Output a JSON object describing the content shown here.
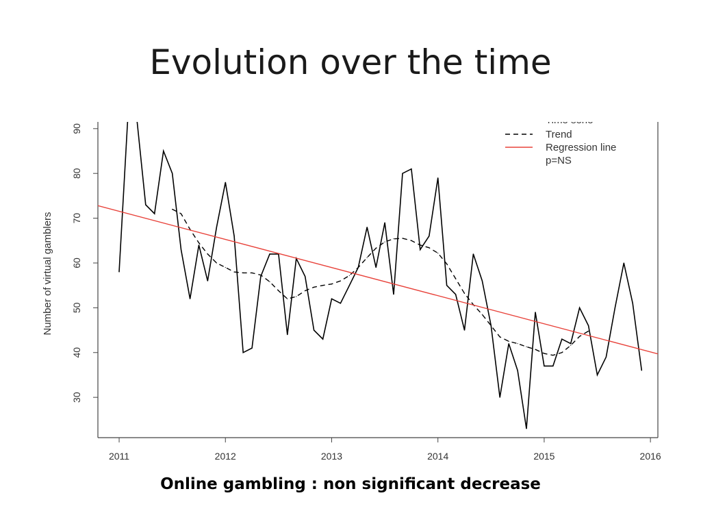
{
  "slide": {
    "title": "Evolution over the time",
    "caption": "Online gambling : non significant decrease"
  },
  "chart_data": {
    "type": "line",
    "ylabel": "Number of virtual gamblers",
    "xlabel": "",
    "xlim": [
      2010.8,
      2016.07
    ],
    "ylim": [
      21,
      91.5
    ],
    "x_ticks": [
      2011,
      2012,
      2013,
      2014,
      2015,
      2016
    ],
    "y_ticks": [
      30,
      40,
      50,
      60,
      70,
      80,
      90
    ],
    "grid": false,
    "legend_position": "top-right",
    "legend": [
      {
        "label": "Time serie",
        "style": "solid",
        "color": "#000000"
      },
      {
        "label": "Trend",
        "style": "dashed",
        "color": "#000000"
      },
      {
        "label": "Regression line",
        "style": "solid",
        "color": "#e8423a"
      },
      {
        "label": "p=NS",
        "style": "none",
        "color": "#000000"
      }
    ],
    "series": [
      {
        "name": "Time serie",
        "style": "solid",
        "color": "#000000",
        "x": [
          2011.0,
          2011.083,
          2011.167,
          2011.25,
          2011.333,
          2011.417,
          2011.5,
          2011.583,
          2011.667,
          2011.75,
          2011.833,
          2011.917,
          2012.0,
          2012.083,
          2012.167,
          2012.25,
          2012.333,
          2012.417,
          2012.5,
          2012.583,
          2012.667,
          2012.75,
          2012.833,
          2012.917,
          2013.0,
          2013.083,
          2013.167,
          2013.25,
          2013.333,
          2013.417,
          2013.5,
          2013.583,
          2013.667,
          2013.75,
          2013.833,
          2013.917,
          2014.0,
          2014.083,
          2014.167,
          2014.25,
          2014.333,
          2014.417,
          2014.5,
          2014.583,
          2014.667,
          2014.75,
          2014.833,
          2014.917,
          2015.0,
          2015.083,
          2015.167,
          2015.25,
          2015.333,
          2015.417,
          2015.5,
          2015.583,
          2015.667,
          2015.75,
          2015.833,
          2015.917
        ],
        "values": [
          58,
          93,
          92,
          73,
          71,
          85,
          80,
          63,
          52,
          64,
          56,
          68,
          78,
          66,
          40,
          41,
          57,
          62,
          62,
          44,
          61,
          57,
          45,
          43,
          52,
          51,
          55,
          59,
          68,
          59,
          69,
          53,
          80,
          81,
          63,
          66,
          79,
          55,
          53,
          45,
          62,
          56,
          46,
          30,
          42,
          36,
          23,
          49,
          37,
          37,
          43,
          42,
          50,
          46,
          35,
          39,
          50,
          60,
          51,
          36
        ]
      },
      {
        "name": "Trend",
        "style": "dashed",
        "color": "#000000",
        "x": [
          2011.5,
          2011.583,
          2011.667,
          2011.75,
          2011.833,
          2011.917,
          2012.0,
          2012.083,
          2012.167,
          2012.25,
          2012.333,
          2012.417,
          2012.5,
          2012.583,
          2012.667,
          2012.75,
          2012.833,
          2012.917,
          2013.0,
          2013.083,
          2013.167,
          2013.25,
          2013.333,
          2013.417,
          2013.5,
          2013.583,
          2013.667,
          2013.75,
          2013.833,
          2013.917,
          2014.0,
          2014.083,
          2014.167,
          2014.25,
          2014.333,
          2014.417,
          2014.5,
          2014.583,
          2014.667,
          2014.75,
          2014.833,
          2014.917,
          2015.0,
          2015.083,
          2015.167,
          2015.25,
          2015.333,
          2015.417
        ],
        "values": [
          72,
          71,
          67.5,
          64.5,
          62,
          60,
          59,
          58,
          57.8,
          57.8,
          57.3,
          55.8,
          53.8,
          52,
          52.5,
          53.8,
          54.6,
          55,
          55.3,
          56,
          57.2,
          59,
          61.2,
          63.3,
          64.7,
          65.4,
          65.5,
          65,
          64,
          63.4,
          62.2,
          59.8,
          56.5,
          53.2,
          50.7,
          48.5,
          46,
          43.5,
          42.5,
          42,
          41.3,
          40.7,
          39.8,
          39.4,
          40,
          41.6,
          43.6,
          44.8
        ]
      },
      {
        "name": "Regression line",
        "style": "solid",
        "color": "#e8423a",
        "x": [
          2010.8,
          2016.07
        ],
        "values": [
          72.8,
          39.7
        ]
      }
    ]
  }
}
